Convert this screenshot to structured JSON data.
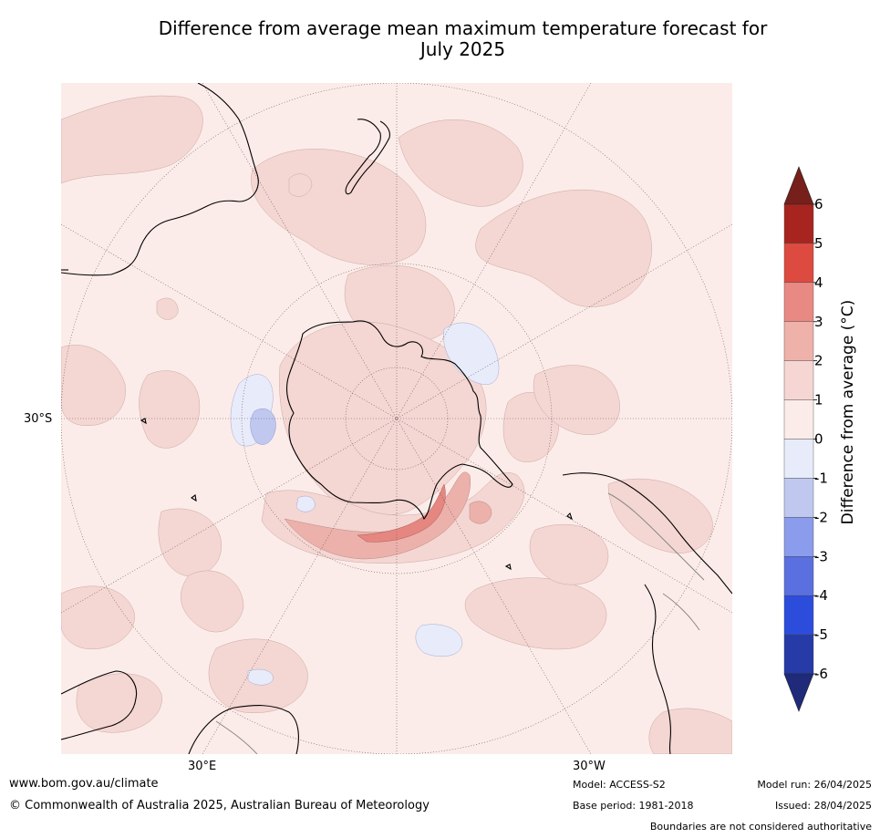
{
  "title": {
    "line1": "Difference from average mean maximum temperature forecast for",
    "line2": "July 2025"
  },
  "map": {
    "projection_center": "South Pole",
    "gridline_labels": {
      "latitude": "30°S",
      "longitude_left": "30°E",
      "longitude_right": "30°W"
    },
    "colors": {
      "ocean_base": "#fcece9",
      "band_1_2": "#f4d6d3",
      "band_2_3": "#ecb1ab",
      "band_3_4": "#e58780",
      "band_0_m1": "#e8ebfa",
      "band_m1_m2": "#c0c8f0",
      "coast": "#000000",
      "boundary": "#888888"
    }
  },
  "colorbar": {
    "label": "Difference from average (°C)",
    "tick_labels": [
      "6",
      "5",
      "4",
      "3",
      "2",
      "1",
      "0",
      "-1",
      "-2",
      "-3",
      "-4",
      "-5",
      "-6"
    ],
    "band_colors": [
      "#a8251f",
      "#dd4b40",
      "#e98983",
      "#eeb2ab",
      "#f6d6d3",
      "#fcece9",
      "#e8ebfa",
      "#c0c8f0",
      "#8c9cec",
      "#5a70e0",
      "#2c4ddc",
      "#263aa8"
    ],
    "top_arrow_color": "#771f1a",
    "bottom_arrow_color": "#1f2a7a"
  },
  "footer": {
    "website": "www.bom.gov.au/climate",
    "copyright": "© Commonwealth of Australia 2025, Australian Bureau of Meteorology",
    "model": "Model: ACCESS-S2",
    "base_period": "Base period: 1981-2018",
    "model_run": "Model run: 26/04/2025",
    "issued": "Issued: 28/04/2025",
    "disclaimer": "Boundaries are not considered authoritative"
  }
}
